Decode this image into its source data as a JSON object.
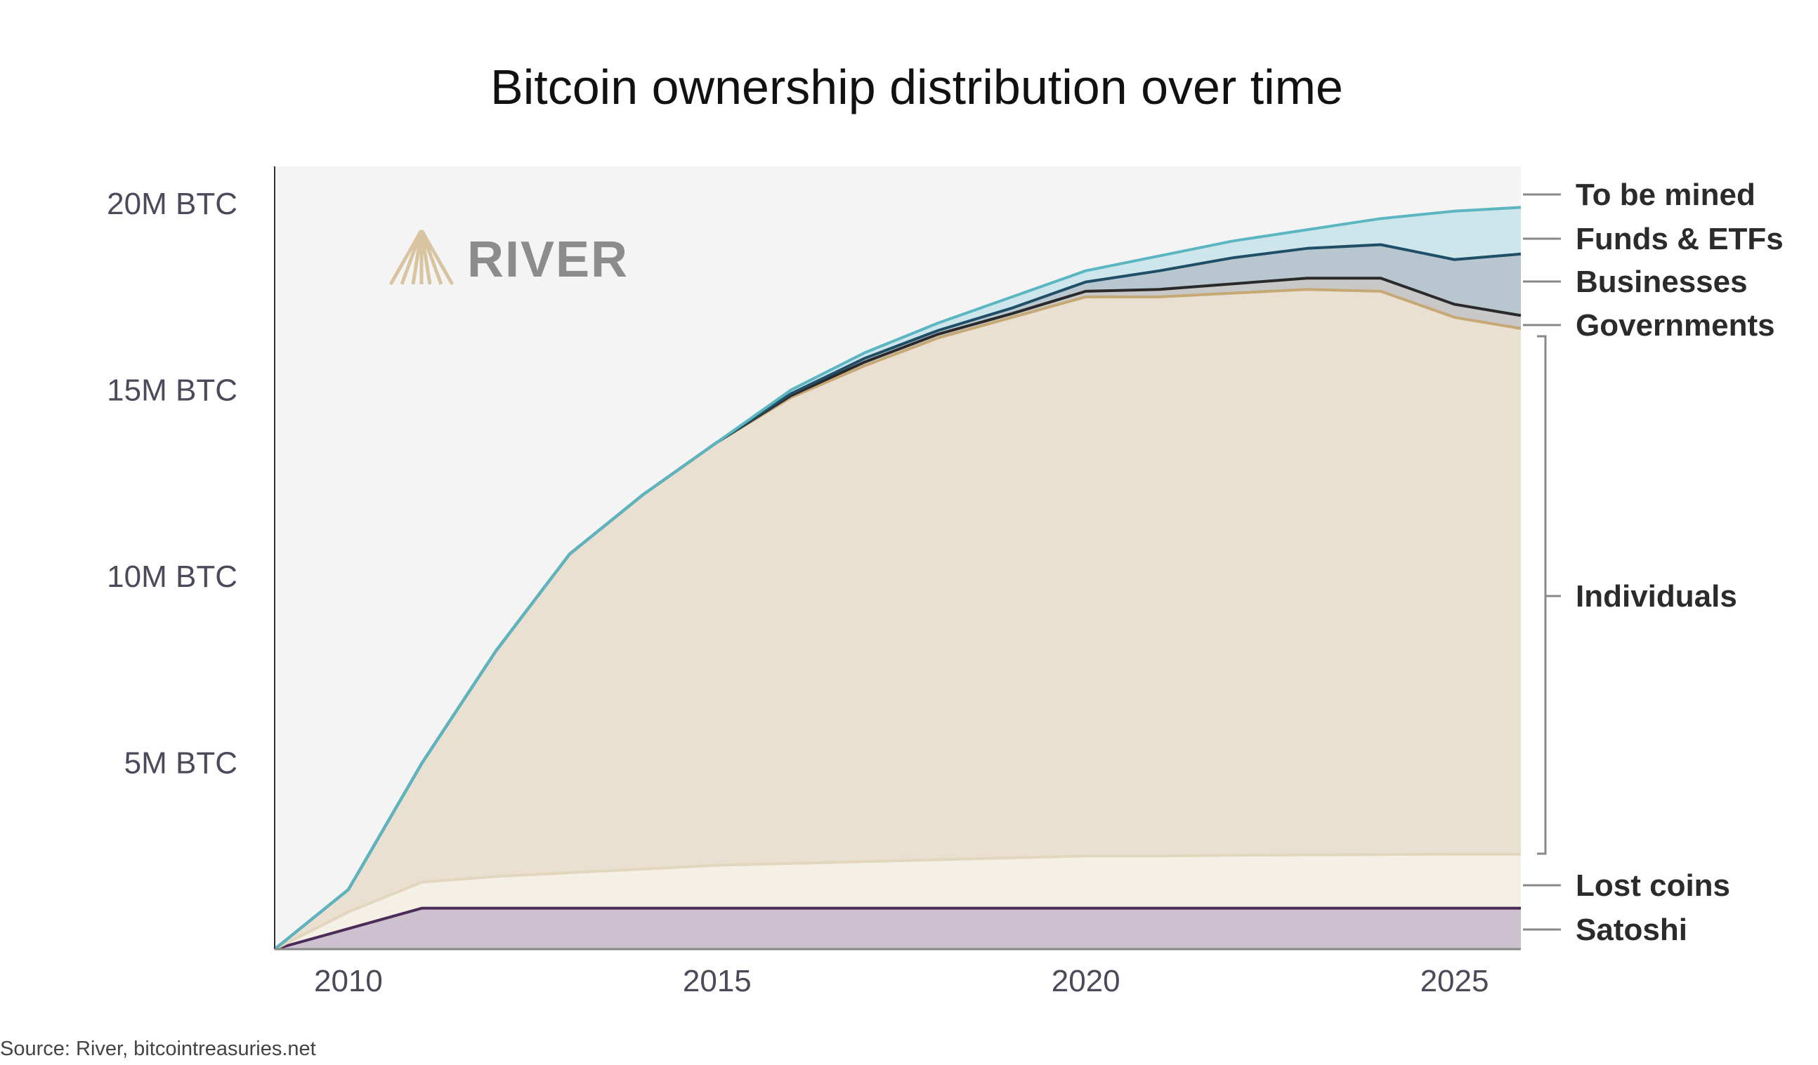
{
  "chart_data": {
    "type": "area",
    "stacked": true,
    "title": "Bitcoin ownership distribution over time",
    "x": [
      2009,
      2010,
      2011,
      2012,
      2013,
      2014,
      2015,
      2016,
      2017,
      2018,
      2019,
      2020,
      2021,
      2022,
      2023,
      2024,
      2025,
      2025.9
    ],
    "xlim": [
      2009,
      2025.9
    ],
    "ylim": [
      0,
      21
    ],
    "xticks": [
      2010,
      2015,
      2020,
      2025
    ],
    "xtick_labels": [
      "2010",
      "2015",
      "2020",
      "2025"
    ],
    "yticks": [
      5,
      10,
      15,
      20
    ],
    "ytick_labels": [
      "5M BTC",
      "10M BTC",
      "15M BTC",
      "20M BTC"
    ],
    "unit": "M BTC",
    "grid": false,
    "legend_placement": "right",
    "series": [
      {
        "name": "Satoshi",
        "fill": "#cdc1d0",
        "line": "#4b2b57",
        "values": [
          0,
          0.55,
          1.1,
          1.1,
          1.1,
          1.1,
          1.1,
          1.1,
          1.1,
          1.1,
          1.1,
          1.1,
          1.1,
          1.1,
          1.1,
          1.1,
          1.1,
          1.1
        ]
      },
      {
        "name": "Lost coins",
        "fill": "#f5f0e5",
        "line": "#e3d6be",
        "values": [
          0,
          0.45,
          0.7,
          0.85,
          0.95,
          1.05,
          1.15,
          1.2,
          1.25,
          1.3,
          1.35,
          1.4,
          1.4,
          1.42,
          1.43,
          1.44,
          1.45,
          1.45
        ]
      },
      {
        "name": "Individuals",
        "fill": "#e9e0d1",
        "line": "#c6a874",
        "values": [
          0,
          0.6,
          3.2,
          6.05,
          8.55,
          10.05,
          11.35,
          12.5,
          13.3,
          14.0,
          14.5,
          15.0,
          15.0,
          15.08,
          15.17,
          15.11,
          14.4,
          14.1
        ]
      },
      {
        "name": "Governments",
        "fill": "#c8c8c9",
        "line": "#2a2a2a",
        "values": [
          0,
          0,
          0,
          0,
          0,
          0,
          0,
          0.05,
          0.1,
          0.1,
          0.1,
          0.15,
          0.2,
          0.25,
          0.3,
          0.35,
          0.35,
          0.35
        ]
      },
      {
        "name": "Businesses",
        "fill": "#b8c7cf",
        "line": "#1f4f66",
        "values": [
          0,
          0,
          0,
          0,
          0,
          0,
          0,
          0.05,
          0.1,
          0.1,
          0.15,
          0.25,
          0.5,
          0.7,
          0.8,
          0.9,
          1.2,
          1.65
        ]
      },
      {
        "name": "Funds & ETFs",
        "fill": "#cde6eb",
        "line": "#5bb6c1",
        "values": [
          0,
          0,
          0,
          0,
          0,
          0,
          0,
          0.1,
          0.15,
          0.2,
          0.3,
          0.3,
          0.4,
          0.45,
          0.5,
          0.7,
          1.3,
          1.25
        ]
      },
      {
        "name": "To be mined",
        "fill": "#f4f4f4",
        "line": "none",
        "remainder_of": 21
      }
    ],
    "legend": [
      "To be mined",
      "Funds & ETFs",
      "Businesses",
      "Governments",
      "Individuals",
      "Lost coins",
      "Satoshi"
    ],
    "plot_background": "#f4f4f4",
    "source": "Source: River, bitcointreasuries.net"
  },
  "logo": {
    "text": "RIVER",
    "text_color": "#8c8c8c",
    "mark_color": "#d8c4a0"
  }
}
